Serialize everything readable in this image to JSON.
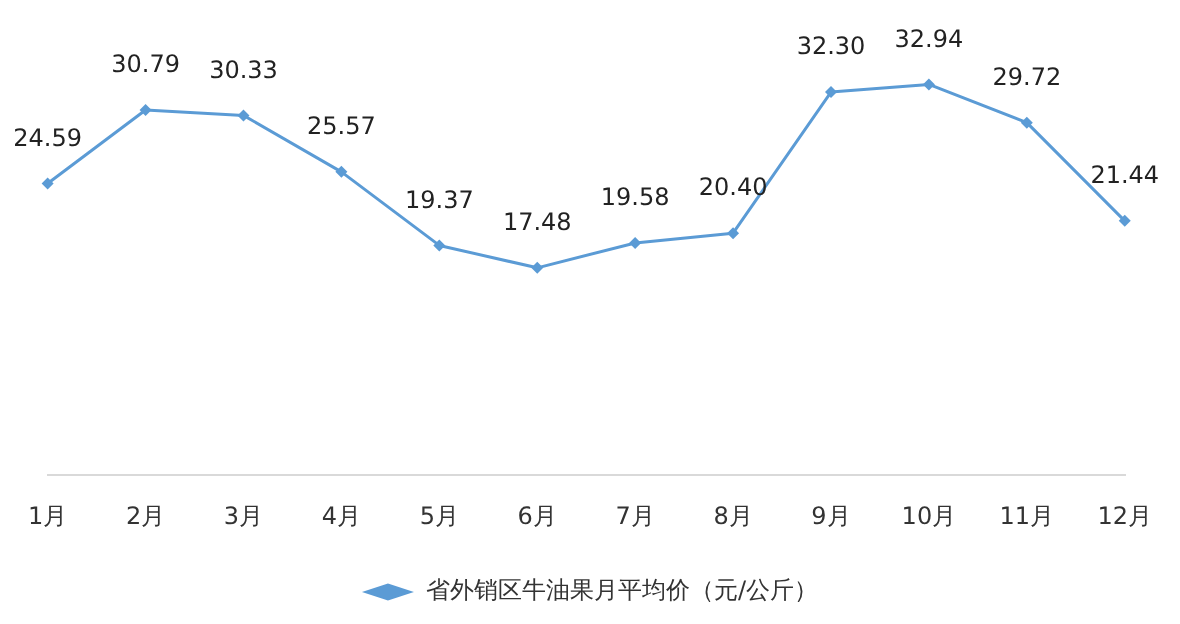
{
  "chart_data": {
    "type": "line",
    "categories": [
      "1月",
      "2月",
      "3月",
      "4月",
      "5月",
      "6月",
      "7月",
      "8月",
      "9月",
      "10月",
      "11月",
      "12月"
    ],
    "series": [
      {
        "name": "省外销区牛油果月平均价（元/公斤）",
        "color": "#5b9bd5",
        "values": [
          24.59,
          30.79,
          30.33,
          25.57,
          19.37,
          17.48,
          19.58,
          20.4,
          32.3,
          32.94,
          29.72,
          21.44
        ],
        "value_labels": [
          "24.59",
          "30.79",
          "30.33",
          "25.57",
          "19.37",
          "17.48",
          "19.58",
          "20.40",
          "32.30",
          "32.94",
          "29.72",
          "21.44"
        ]
      }
    ],
    "tick_labels": "x",
    "legend": "bottom",
    "marker": "diamond",
    "line_style": "solid",
    "grid": false
  }
}
